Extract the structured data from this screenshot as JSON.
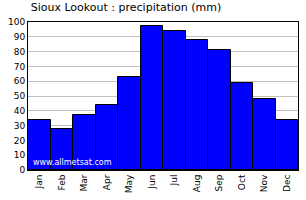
{
  "chart_data": {
    "type": "bar",
    "title": "Sioux Lookout : precipitation (mm)",
    "categories": [
      "Jan",
      "Feb",
      "Mar",
      "Apr",
      "May",
      "Jun",
      "Jul",
      "Aug",
      "Sep",
      "Oct",
      "Nov",
      "Dec"
    ],
    "values": [
      34,
      28,
      37,
      44,
      63,
      97,
      94,
      88,
      81,
      59,
      48,
      34
    ],
    "color": "#0000ff",
    "ylim": [
      0,
      100
    ],
    "yticks": [
      0,
      10,
      20,
      30,
      40,
      50,
      60,
      70,
      80,
      90,
      100
    ],
    "grid": true,
    "annotations": [
      {
        "text": "www.allmetsat.com"
      }
    ]
  }
}
